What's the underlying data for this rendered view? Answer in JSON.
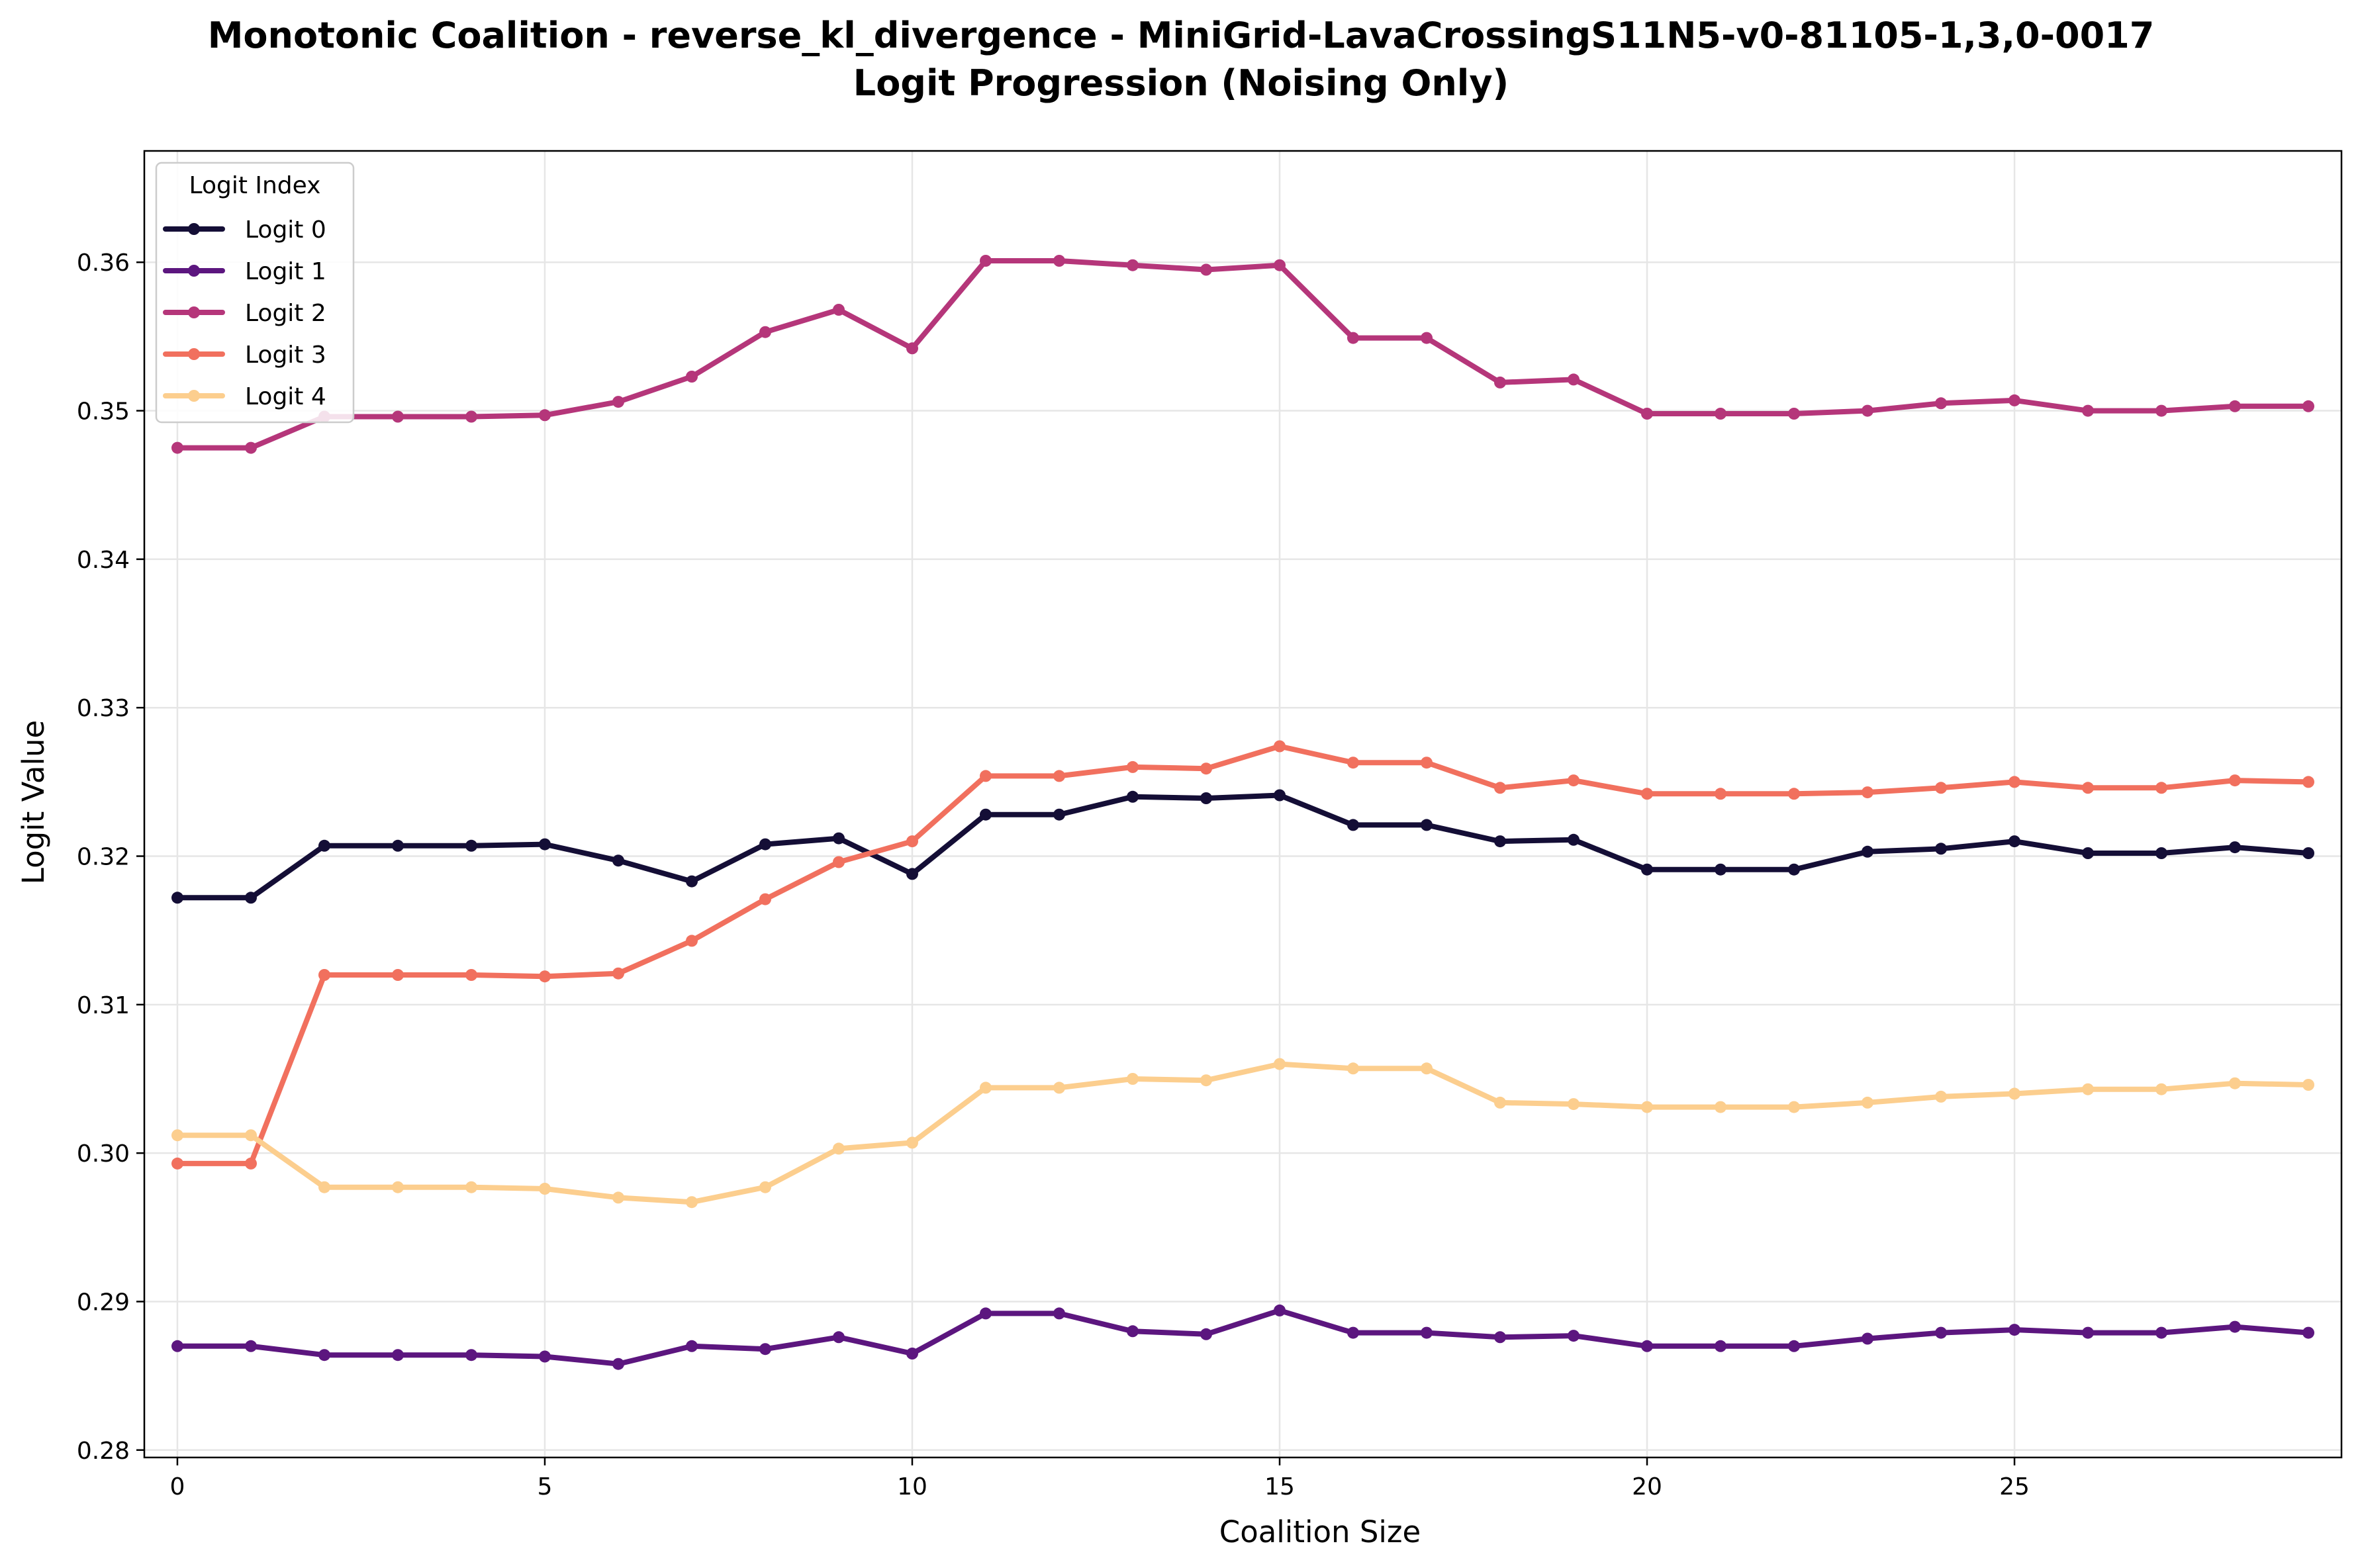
{
  "chart_data": {
    "type": "line",
    "title": "Monotonic Coalition - reverse_kl_divergence - MiniGrid-LavaCrossingS11N5-v0-81105-1,3,0-0017",
    "subtitle": "Logit Progression (Noising Only)",
    "xlabel": "Coalition Size",
    "ylabel": "Logit Value",
    "xlim": [
      -0.45,
      29.45
    ],
    "ylim": [
      0.2795,
      0.3675
    ],
    "xticks": [
      0,
      5,
      10,
      15,
      20,
      25
    ],
    "xtick_labels": [
      "0",
      "5",
      "10",
      "15",
      "20",
      "25"
    ],
    "yticks": [
      0.28,
      0.29,
      0.3,
      0.31,
      0.32,
      0.33,
      0.34,
      0.35,
      0.36
    ],
    "ytick_labels": [
      "0.28",
      "0.29",
      "0.30",
      "0.31",
      "0.32",
      "0.33",
      "0.34",
      "0.35",
      "0.36"
    ],
    "grid": true,
    "legend": {
      "title": "Logit Index",
      "placement": "top-left"
    },
    "x": [
      0,
      1,
      2,
      3,
      4,
      5,
      6,
      7,
      8,
      9,
      10,
      11,
      12,
      13,
      14,
      15,
      16,
      17,
      18,
      19,
      20,
      21,
      22,
      23,
      24,
      25,
      26,
      27,
      28,
      29
    ],
    "series": [
      {
        "name": "Logit 0",
        "color": "#140e36",
        "values": [
          0.3172,
          0.3172,
          0.3207,
          0.3207,
          0.3207,
          0.3208,
          0.3197,
          0.3183,
          0.3208,
          0.3212,
          0.3188,
          0.3228,
          0.3228,
          0.324,
          0.3239,
          0.3241,
          0.3221,
          0.3221,
          0.321,
          0.3211,
          0.3191,
          0.3191,
          0.3191,
          0.3203,
          0.3205,
          0.321,
          0.3202,
          0.3202,
          0.3206,
          0.3202
        ]
      },
      {
        "name": "Logit 1",
        "color": "#5c167f",
        "values": [
          0.287,
          0.287,
          0.2864,
          0.2864,
          0.2864,
          0.2863,
          0.2858,
          0.287,
          0.2868,
          0.2876,
          0.2865,
          0.2892,
          0.2892,
          0.288,
          0.2878,
          0.2894,
          0.2879,
          0.2879,
          0.2876,
          0.2877,
          0.287,
          0.287,
          0.287,
          0.2875,
          0.2879,
          0.2881,
          0.2879,
          0.2879,
          0.2883,
          0.2879
        ]
      },
      {
        "name": "Logit 2",
        "color": "#b5367a",
        "values": [
          0.3475,
          0.3475,
          0.3496,
          0.3496,
          0.3496,
          0.3497,
          0.3506,
          0.3523,
          0.3553,
          0.3568,
          0.3542,
          0.3601,
          0.3601,
          0.3598,
          0.3595,
          0.3598,
          0.3549,
          0.3549,
          0.3519,
          0.3521,
          0.3498,
          0.3498,
          0.3498,
          0.35,
          0.3505,
          0.3507,
          0.35,
          0.35,
          0.3503,
          0.3503
        ]
      },
      {
        "name": "Logit 3",
        "color": "#f1705e",
        "values": [
          0.2993,
          0.2993,
          0.312,
          0.312,
          0.312,
          0.3119,
          0.3121,
          0.3143,
          0.3171,
          0.3196,
          0.321,
          0.3254,
          0.3254,
          0.326,
          0.3259,
          0.3274,
          0.3263,
          0.3263,
          0.3246,
          0.3251,
          0.3242,
          0.3242,
          0.3242,
          0.3243,
          0.3246,
          0.325,
          0.3246,
          0.3246,
          0.3251,
          0.325
        ]
      },
      {
        "name": "Logit 4",
        "color": "#fcce8e",
        "values": [
          0.3012,
          0.3012,
          0.2977,
          0.2977,
          0.2977,
          0.2976,
          0.297,
          0.2967,
          0.2977,
          0.3003,
          0.3007,
          0.3044,
          0.3044,
          0.305,
          0.3049,
          0.306,
          0.3057,
          0.3057,
          0.3034,
          0.3033,
          0.3031,
          0.3031,
          0.3031,
          0.3034,
          0.3038,
          0.304,
          0.3043,
          0.3043,
          0.3047,
          0.3046
        ]
      }
    ]
  }
}
